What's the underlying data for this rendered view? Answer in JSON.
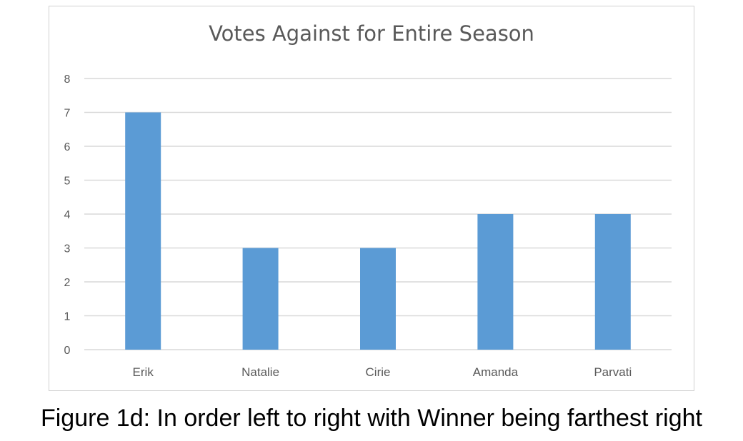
{
  "chart_data": {
    "type": "bar",
    "title": "Votes Against for Entire Season",
    "categories": [
      "Erik",
      "Natalie",
      "Cirie",
      "Amanda",
      "Parvati"
    ],
    "values": [
      7,
      3,
      3,
      4,
      4
    ],
    "xlabel": "",
    "ylabel": "",
    "ylim": [
      0,
      8
    ],
    "yticks": [
      "0",
      "1",
      "2",
      "3",
      "4",
      "5",
      "6",
      "7",
      "8"
    ],
    "grid": true,
    "bar_color": "#5b9bd5",
    "grid_color": "#d9d9d9",
    "tick_color": "#595959"
  },
  "caption": "Figure 1d: In order left to right with Winner being farthest right"
}
